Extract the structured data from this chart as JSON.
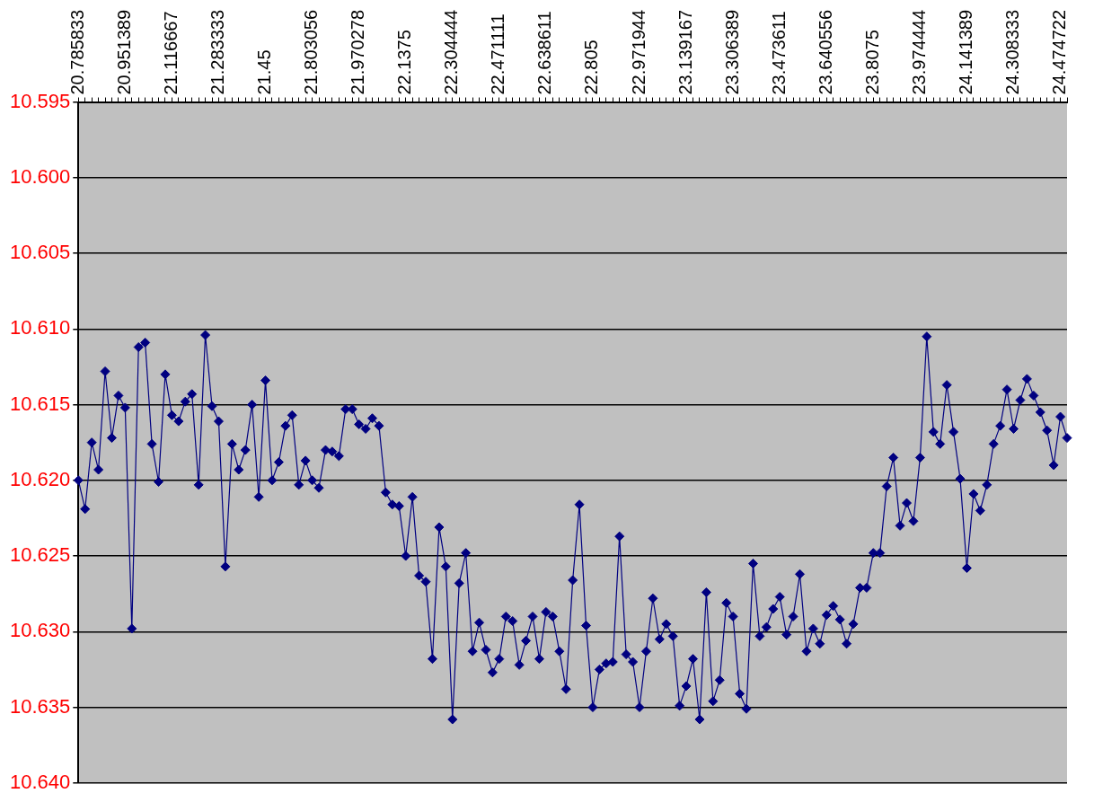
{
  "chart_data": {
    "type": "line",
    "categories": [
      "20.785833",
      null,
      null,
      null,
      null,
      null,
      null,
      "20.951389",
      null,
      null,
      null,
      null,
      null,
      null,
      "21.116667",
      null,
      null,
      null,
      null,
      null,
      null,
      "21.283333",
      null,
      null,
      null,
      null,
      null,
      null,
      "21.45",
      null,
      null,
      null,
      null,
      null,
      null,
      "21.803056",
      null,
      null,
      null,
      null,
      null,
      null,
      "21.970278",
      null,
      null,
      null,
      null,
      null,
      null,
      "22.1375",
      null,
      null,
      null,
      null,
      null,
      null,
      "22.304444",
      null,
      null,
      null,
      null,
      null,
      null,
      "22.471111",
      null,
      null,
      null,
      null,
      null,
      null,
      "22.638611",
      null,
      null,
      null,
      null,
      null,
      null,
      "22.805",
      null,
      null,
      null,
      null,
      null,
      null,
      "22.971944",
      null,
      null,
      null,
      null,
      null,
      null,
      "23.139167",
      null,
      null,
      null,
      null,
      null,
      null,
      "23.306389",
      null,
      null,
      null,
      null,
      null,
      null,
      "23.473611",
      null,
      null,
      null,
      null,
      null,
      null,
      "23.640556",
      null,
      null,
      null,
      null,
      null,
      null,
      "23.8075",
      null,
      null,
      null,
      null,
      null,
      null,
      "23.974444",
      null,
      null,
      null,
      null,
      null,
      null,
      "24.141389",
      null,
      null,
      null,
      null,
      null,
      null,
      "24.308333",
      null,
      null,
      null,
      null,
      null,
      null,
      "24.474722",
      null
    ],
    "series": [
      {
        "color": "#000080",
        "values": [
          10.62,
          10.6219,
          10.6175,
          10.6193,
          10.6128,
          10.6172,
          10.6144,
          10.6152,
          10.6298,
          10.6112,
          10.6109,
          10.6176,
          10.6201,
          10.613,
          10.6157,
          10.6161,
          10.6148,
          10.6143,
          10.6203,
          10.6104,
          10.6151,
          10.6161,
          10.6257,
          10.6176,
          10.6193,
          10.618,
          10.615,
          10.6211,
          10.6134,
          10.62,
          10.6188,
          10.6164,
          10.6157,
          10.6203,
          10.6187,
          10.62,
          10.6205,
          10.618,
          10.6181,
          10.6184,
          10.6153,
          10.6153,
          10.6163,
          10.6166,
          10.6159,
          10.6164,
          10.6208,
          10.6216,
          10.6217,
          10.625,
          10.6211,
          10.6263,
          10.6267,
          10.6318,
          10.6231,
          10.6257,
          10.6358,
          10.6268,
          10.6248,
          10.6313,
          10.6294,
          10.6312,
          10.6327,
          10.6318,
          10.629,
          10.6293,
          10.6322,
          10.6306,
          10.629,
          10.6318,
          10.6287,
          10.629,
          10.6313,
          10.6338,
          10.6266,
          10.6216,
          10.6296,
          10.635,
          10.6325,
          10.6321,
          10.632,
          10.6237,
          10.6315,
          10.632,
          10.635,
          10.6313,
          10.6278,
          10.6305,
          10.6295,
          10.6303,
          10.6349,
          10.6336,
          10.6318,
          10.6358,
          10.6274,
          10.6346,
          10.6332,
          10.6281,
          10.629,
          10.6341,
          10.6351,
          10.6255,
          10.6303,
          10.6297,
          10.6285,
          10.6277,
          10.6302,
          10.629,
          10.6262,
          10.6313,
          10.6298,
          10.6308,
          10.6289,
          10.6283,
          10.6292,
          10.6308,
          10.6295,
          10.6271,
          10.6271,
          10.6248,
          10.6248,
          10.6204,
          10.6185,
          10.623,
          10.6215,
          10.6227,
          10.6185,
          10.6105,
          10.6168,
          10.6176,
          10.6137,
          10.6168,
          10.6199,
          10.6258,
          10.6209,
          10.622,
          10.6203,
          10.6176,
          10.6164,
          10.614,
          10.6166,
          10.6147,
          10.6133,
          10.6144,
          10.6155,
          10.6167,
          10.619,
          10.6158,
          10.6172
        ]
      }
    ],
    "ylim": [
      10.64,
      10.595
    ],
    "yticks": [
      {
        "value": 10.595,
        "label": "10.595"
      },
      {
        "value": 10.6,
        "label": "10.600"
      },
      {
        "value": 10.605,
        "label": "10.605"
      },
      {
        "value": 10.61,
        "label": "10.610"
      },
      {
        "value": 10.615,
        "label": "10.615"
      },
      {
        "value": 10.62,
        "label": "10.620"
      },
      {
        "value": 10.625,
        "label": "10.625"
      },
      {
        "value": 10.63,
        "label": "10.630"
      },
      {
        "value": 10.635,
        "label": "10.635"
      },
      {
        "value": 10.64,
        "label": "10.640"
      }
    ],
    "grid": "y",
    "legend": false,
    "marker": "diamond",
    "line_style": "solid"
  }
}
